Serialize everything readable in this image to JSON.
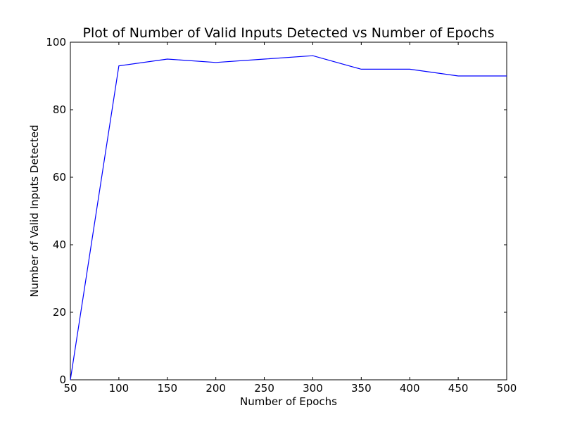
{
  "chart_data": {
    "type": "line",
    "title": "Plot of Number of Valid Inputs Detected vs Number of Epochs",
    "xlabel": "Number of Epochs",
    "ylabel": "Number of Valid Inputs Detected",
    "xlim": [
      50,
      500
    ],
    "ylim": [
      0,
      100
    ],
    "xticks": [
      50,
      100,
      150,
      200,
      250,
      300,
      350,
      400,
      450,
      500
    ],
    "yticks": [
      0,
      20,
      40,
      60,
      80,
      100
    ],
    "grid": false,
    "series": [
      {
        "color": "#0000ff",
        "x": [
          50,
          100,
          150,
          200,
          250,
          300,
          350,
          400,
          450,
          500
        ],
        "y": [
          0,
          93,
          95,
          94,
          95,
          96,
          92,
          92,
          90,
          90
        ]
      }
    ]
  }
}
